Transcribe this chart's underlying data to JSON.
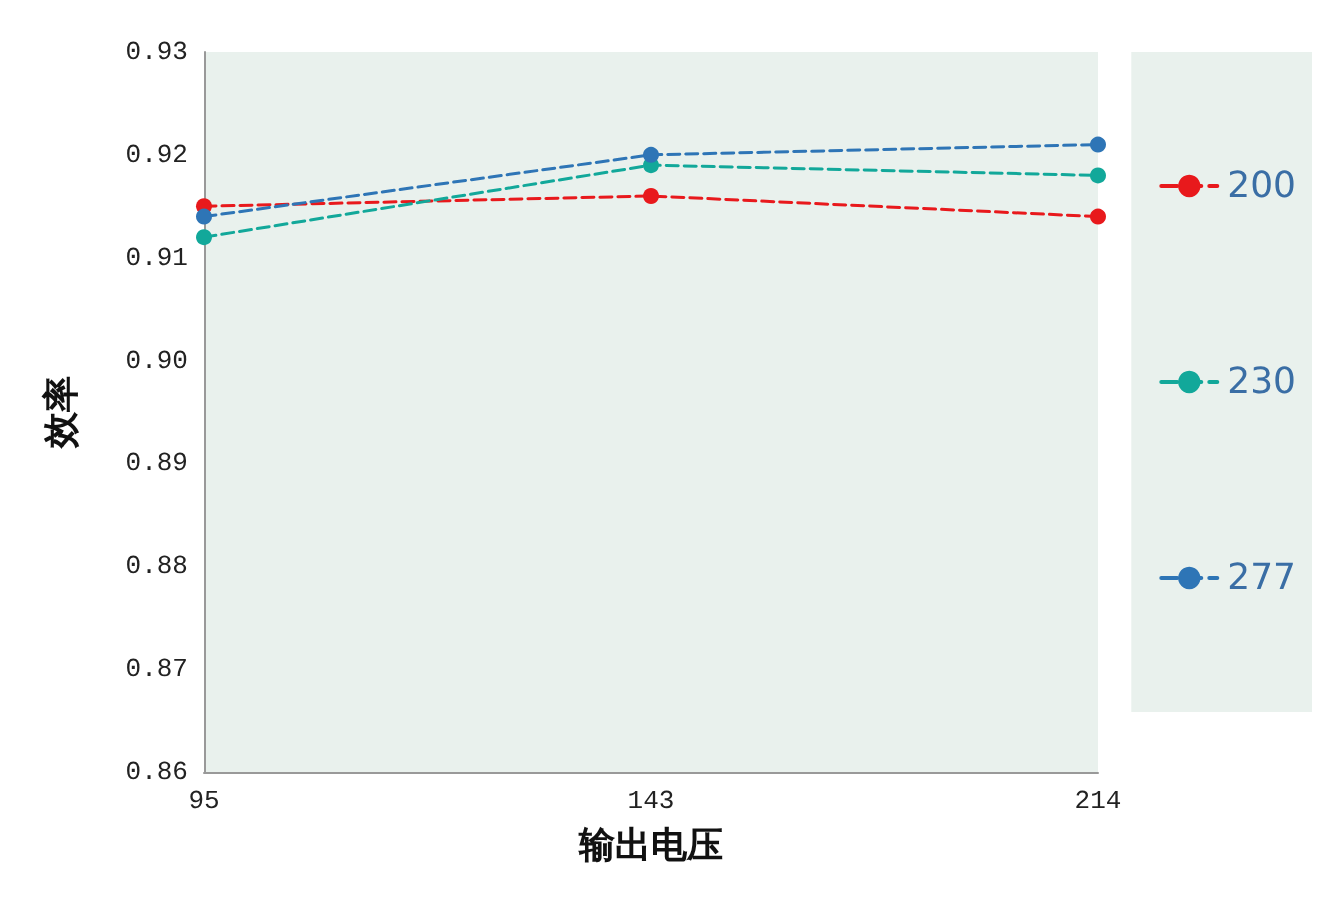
{
  "chart_data": {
    "type": "line",
    "xlabel": "输出电压",
    "ylabel": "效率",
    "categories": [
      "95",
      "143",
      "214"
    ],
    "series": [
      {
        "name": "200",
        "color": "#e8191c",
        "values": [
          0.915,
          0.916,
          0.914
        ]
      },
      {
        "name": "230",
        "color": "#12a89a",
        "values": [
          0.912,
          0.919,
          0.918
        ]
      },
      {
        "name": "277",
        "color": "#2e75b6",
        "values": [
          0.914,
          0.92,
          0.921
        ]
      }
    ],
    "ylim": [
      0.86,
      0.93
    ],
    "yticks": [
      0.86,
      0.87,
      0.88,
      0.89,
      {
        "value": 0.9,
        "label": "0.90"
      },
      0.91,
      0.92,
      0.93
    ],
    "grid": false,
    "legend": "right",
    "marker": "circle",
    "line_style": "dashed"
  }
}
